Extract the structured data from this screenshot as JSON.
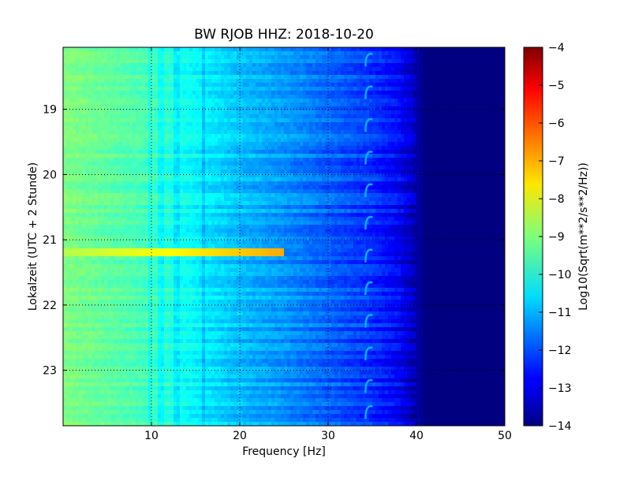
{
  "chart_data": {
    "type": "heatmap",
    "title": "BW RJOB HHZ: 2018-10-20",
    "xlabel": "Frequency [Hz]",
    "ylabel": "Lokalzeit (UTC + 2 Stunde)",
    "xlim": [
      0,
      50
    ],
    "ylim": [
      18.05,
      23.85
    ],
    "y_inverted": true,
    "xticks": [
      10,
      20,
      30,
      40,
      50
    ],
    "yticks": [
      19,
      20,
      21,
      22,
      23
    ],
    "grid": true,
    "colormap": "jet",
    "colorbar": {
      "label": "Log10(Sqrt(m**2/s**2/Hz))",
      "range": [
        -14,
        -4
      ],
      "ticks": [
        -4,
        -5,
        -6,
        -7,
        -8,
        -9,
        -10,
        -11,
        -12,
        -13,
        -14
      ]
    },
    "frequency_profile": [
      {
        "f": 0,
        "v": -9.0
      },
      {
        "f": 5,
        "v": -9.3
      },
      {
        "f": 10,
        "v": -9.6
      },
      {
        "f": 15,
        "v": -10.3
      },
      {
        "f": 20,
        "v": -10.9
      },
      {
        "f": 25,
        "v": -11.3
      },
      {
        "f": 30,
        "v": -11.8
      },
      {
        "f": 35,
        "v": -12.3
      },
      {
        "f": 38,
        "v": -12.8
      },
      {
        "f": 40,
        "v": -13.5
      },
      {
        "f": 41,
        "v": -14.0
      },
      {
        "f": 50,
        "v": -14.0
      }
    ],
    "features": [
      {
        "kind": "horizontal_band",
        "hour": 21.2,
        "f_range": [
          0,
          25
        ],
        "value": -8.5
      },
      {
        "kind": "periodic_tone",
        "f": 34.5,
        "hours": [
          18.2,
          18.7,
          19.2,
          19.7,
          20.2,
          20.7,
          21.2,
          21.7,
          22.2,
          22.7,
          23.2,
          23.6
        ],
        "value": -11.0
      }
    ]
  }
}
